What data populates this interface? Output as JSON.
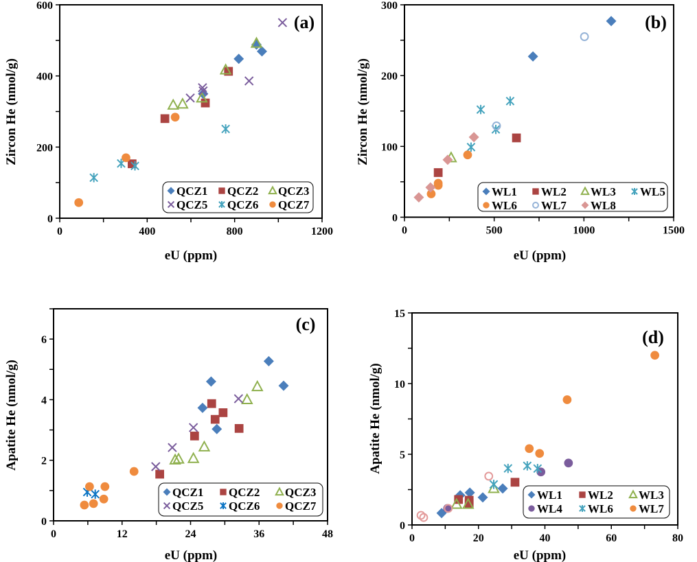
{
  "chart_data": [
    {
      "type": "scatter",
      "panel_label": "(a)",
      "xlabel": "eU (ppm)",
      "ylabel": "Zircon  He (nmol/g)",
      "xlim": [
        0,
        1200
      ],
      "ylim": [
        0,
        600
      ],
      "xticks": [
        0,
        400,
        800,
        1200
      ],
      "yticks": [
        0,
        200,
        400,
        600
      ],
      "grid": false,
      "legend": "bottom-right",
      "series": [
        {
          "name": "QCZ1",
          "marker": "diamond",
          "color": "#4a7ebb",
          "points": [
            [
              819,
              448
            ],
            [
              925,
              469
            ],
            [
              900,
              488
            ],
            [
              656,
              350
            ]
          ]
        },
        {
          "name": "QCZ2",
          "marker": "square",
          "color": "#ab4442",
          "points": [
            [
              772,
              413
            ],
            [
              666,
              324
            ],
            [
              481,
              280
            ],
            [
              331,
              153
            ]
          ]
        },
        {
          "name": "QCZ3",
          "marker": "triangle-open",
          "color": "#8fb04e",
          "points": [
            [
              900,
              492
            ],
            [
              759,
              417
            ],
            [
              650,
              338
            ],
            [
              519,
              318
            ],
            [
              562,
              321
            ]
          ]
        },
        {
          "name": "QCZ5",
          "marker": "x",
          "color": "#7a5c9c",
          "points": [
            [
              1019,
              550
            ],
            [
              866,
              386
            ],
            [
              653,
              367
            ],
            [
              656,
              358
            ],
            [
              597,
              338
            ]
          ]
        },
        {
          "name": "QCZ6",
          "marker": "asterisk",
          "color": "#45a3bd",
          "points": [
            [
              759,
              251
            ],
            [
              281,
              154
            ],
            [
              344,
              147
            ],
            [
              156,
              114
            ]
          ]
        },
        {
          "name": "QCZ7",
          "marker": "circle",
          "color": "#ef8b3e",
          "points": [
            [
              528,
              284
            ],
            [
              303,
              170
            ],
            [
              87,
              44
            ]
          ]
        }
      ]
    },
    {
      "type": "scatter",
      "panel_label": "(b)",
      "xlabel": "eU (ppm)",
      "ylabel": "Zircon  He (nmol/g)",
      "xlim": [
        0,
        1500
      ],
      "ylim": [
        0,
        300
      ],
      "xticks": [
        0,
        500,
        1000,
        1500
      ],
      "yticks": [
        0,
        100,
        200,
        300
      ],
      "grid": false,
      "legend": "bottom-right",
      "series": [
        {
          "name": "WL1",
          "marker": "diamond",
          "color": "#4a7ebb",
          "points": [
            [
              1152,
              277
            ],
            [
              716,
              227
            ]
          ]
        },
        {
          "name": "WL2",
          "marker": "square",
          "color": "#ab4442",
          "points": [
            [
              624,
              112
            ],
            [
              188,
              63
            ]
          ]
        },
        {
          "name": "WL3",
          "marker": "triangle-open",
          "color": "#8fb04e",
          "points": [
            [
              260,
              84
            ]
          ]
        },
        {
          "name": "WL5",
          "marker": "asterisk",
          "color": "#45a3bd",
          "points": [
            [
              425,
              152
            ],
            [
              589,
              164
            ],
            [
              509,
              124
            ],
            [
              371,
              99
            ]
          ]
        },
        {
          "name": "WL6",
          "marker": "circle",
          "color": "#ef8b3e",
          "points": [
            [
              352,
              88
            ],
            [
              188,
              48
            ],
            [
              188,
              45
            ],
            [
              149,
              33
            ]
          ]
        },
        {
          "name": "WL7",
          "marker": "circle-open",
          "color": "#95b3d7",
          "points": [
            [
              1003,
              255
            ],
            [
              513,
              129
            ]
          ]
        },
        {
          "name": "WL8",
          "marker": "diamond",
          "color": "#d99694",
          "points": [
            [
              387,
              113
            ],
            [
              241,
              81
            ],
            [
              145,
              42
            ],
            [
              80,
              28
            ]
          ]
        }
      ]
    },
    {
      "type": "scatter",
      "panel_label": "(c)",
      "xlabel": "eU (ppm)",
      "ylabel": "Apatite  He (nmol/g)",
      "xlim": [
        0,
        48
      ],
      "ylim": [
        0,
        7
      ],
      "xticks": [
        0,
        12,
        24,
        36,
        48
      ],
      "yticks": [
        0,
        2,
        4,
        6
      ],
      "grid": false,
      "legend": "bottom-right",
      "series": [
        {
          "name": "QCZ1",
          "marker": "diamond",
          "color": "#4a7ebb",
          "points": [
            [
              37.7,
              5.27
            ],
            [
              27.6,
              4.6
            ],
            [
              40.3,
              4.46
            ],
            [
              26.1,
              3.73
            ],
            [
              28.6,
              3.03
            ]
          ]
        },
        {
          "name": "QCZ2",
          "marker": "square",
          "color": "#ab4442",
          "points": [
            [
              27.7,
              3.87
            ],
            [
              29.7,
              3.57
            ],
            [
              28.3,
              3.35
            ],
            [
              32.5,
              3.05
            ],
            [
              24.7,
              2.8
            ],
            [
              18.6,
              1.54
            ]
          ]
        },
        {
          "name": "QCZ3",
          "marker": "triangle-open",
          "color": "#8fb04e",
          "points": [
            [
              35.7,
              4.43
            ],
            [
              33.9,
              4.0
            ],
            [
              26.4,
              2.44
            ],
            [
              24.5,
              2.06
            ],
            [
              21.3,
              2.01
            ],
            [
              21.9,
              2.04
            ]
          ]
        },
        {
          "name": "QCZ5",
          "marker": "x",
          "color": "#7a5c9c",
          "points": [
            [
              32.4,
              4.03
            ],
            [
              24.5,
              3.08
            ],
            [
              20.8,
              2.42
            ],
            [
              17.9,
              1.79
            ]
          ]
        },
        {
          "name": "QCZ6",
          "marker": "asterisk",
          "color": "#0b74c4",
          "points": [
            [
              5.9,
              0.95
            ],
            [
              7.3,
              0.88
            ]
          ]
        },
        {
          "name": "QCZ7",
          "marker": "circle",
          "color": "#ef8b3e",
          "points": [
            [
              14.1,
              1.63
            ],
            [
              6.3,
              1.13
            ],
            [
              9.0,
              1.13
            ],
            [
              8.8,
              0.72
            ],
            [
              7.0,
              0.57
            ],
            [
              5.4,
              0.52
            ]
          ]
        }
      ]
    },
    {
      "type": "scatter",
      "panel_label": "(d)",
      "xlabel": "eU (ppm)",
      "ylabel": "Apatite  He (nmol/g)",
      "xlim": [
        0,
        80
      ],
      "ylim": [
        0,
        15
      ],
      "xticks": [
        0,
        20,
        40,
        60,
        80
      ],
      "yticks": [
        0,
        5,
        10,
        15
      ],
      "grid": false,
      "legend": "bottom-right",
      "series": [
        {
          "name": "WL1",
          "marker": "diamond",
          "color": "#4a7ebb",
          "points": [
            [
              8.9,
              0.84
            ],
            [
              14.5,
              2.1
            ],
            [
              17.4,
              2.29
            ],
            [
              21.3,
              1.95
            ],
            [
              27.3,
              2.58
            ]
          ]
        },
        {
          "name": "WL2",
          "marker": "square",
          "color": "#ab4442",
          "points": [
            [
              31.0,
              3.02
            ],
            [
              14.0,
              1.8
            ],
            [
              17.2,
              1.75
            ],
            [
              17.2,
              1.5
            ]
          ]
        },
        {
          "name": "WL3",
          "marker": "triangle-open",
          "color": "#8fb04e",
          "points": [
            [
              24.6,
              2.58
            ],
            [
              13.4,
              1.46
            ],
            [
              16.9,
              1.46
            ]
          ]
        },
        {
          "name": "WL4",
          "marker": "circle",
          "color": "#7a5c9c",
          "points": [
            [
              47.1,
              4.38
            ],
            [
              38.8,
              3.75
            ],
            [
              10.7,
              1.17
            ]
          ]
        },
        {
          "name": "WL6",
          "marker": "asterisk",
          "color": "#45a3bd",
          "points": [
            [
              28.9,
              4.0
            ],
            [
              34.7,
              4.18
            ],
            [
              37.8,
              3.99
            ],
            [
              24.6,
              2.87
            ]
          ]
        },
        {
          "name": "WL7",
          "marker": "circle",
          "color": "#ef8b3e",
          "points": [
            [
              73.1,
              12.0
            ],
            [
              46.7,
              8.86
            ],
            [
              35.3,
              5.4
            ],
            [
              38.4,
              5.06
            ]
          ]
        },
        {
          "marker": "circle-open",
          "color": "#e39a9a",
          "points": [
            [
              23.1,
              3.45
            ],
            [
              2.7,
              0.68
            ],
            [
              3.5,
              0.53
            ],
            [
              10.9,
              1.17
            ]
          ]
        }
      ]
    }
  ]
}
